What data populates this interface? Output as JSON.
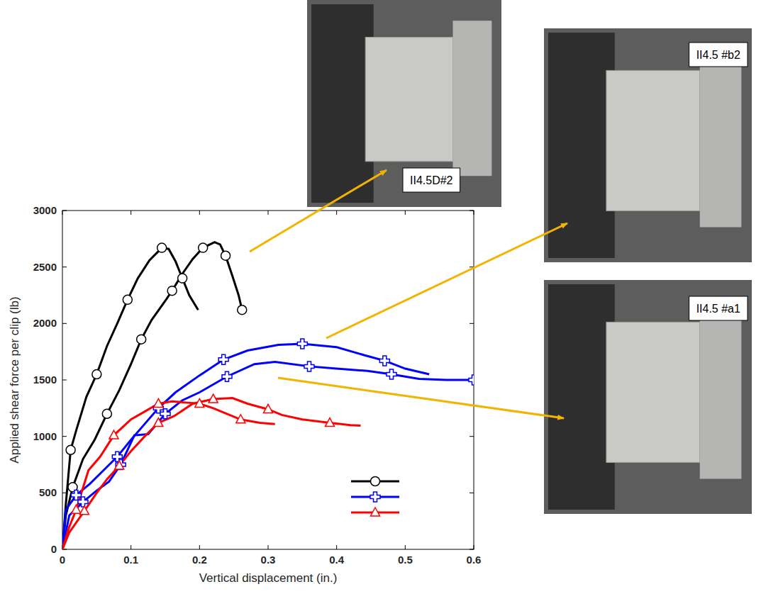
{
  "chart_data": {
    "type": "line",
    "xlabel": "Vertical displacement (in.)",
    "ylabel": "Applied shear force per clip (lb)",
    "xlim": [
      0,
      0.6
    ],
    "ylim": [
      0,
      3000
    ],
    "xticks": [
      0,
      0.1,
      0.2,
      0.3,
      0.4,
      0.5,
      0.6
    ],
    "yticks": [
      0,
      500,
      1000,
      1500,
      2000,
      2500,
      3000
    ],
    "grid": false,
    "legend": "lower right",
    "annotations": [
      {
        "text": "II4.5D#2"
      },
      {
        "text": "II4.5 #b2"
      },
      {
        "text": "II4.5 #a1"
      }
    ],
    "series": [
      {
        "color": "#000000",
        "marker": "circle",
        "line_style": "solid",
        "x": [
          0,
          0.005,
          0.012,
          0.02,
          0.035,
          0.05,
          0.065,
          0.08,
          0.095,
          0.11,
          0.127,
          0.145,
          0.155,
          0.165,
          0.175,
          0.185,
          0.198
        ],
        "values": [
          0,
          400,
          880,
          1050,
          1350,
          1550,
          1800,
          2000,
          2210,
          2400,
          2560,
          2670,
          2660,
          2550,
          2400,
          2250,
          2120
        ]
      },
      {
        "color": "#000000",
        "marker": "circle",
        "line_style": "solid",
        "x": [
          0,
          0.005,
          0.015,
          0.03,
          0.047,
          0.065,
          0.083,
          0.1,
          0.115,
          0.13,
          0.15,
          0.16,
          0.175,
          0.19,
          0.205,
          0.222,
          0.23,
          0.238,
          0.248,
          0.257,
          0.262
        ],
        "values": [
          0,
          300,
          550,
          800,
          970,
          1200,
          1410,
          1640,
          1860,
          2030,
          2200,
          2290,
          2440,
          2570,
          2670,
          2720,
          2700,
          2600,
          2420,
          2250,
          2120
        ]
      },
      {
        "color": "#0000ff",
        "marker": "plus",
        "line_style": "solid",
        "x": [
          0,
          0.005,
          0.02,
          0.04,
          0.06,
          0.08,
          0.1,
          0.12,
          0.14,
          0.165,
          0.2,
          0.235,
          0.27,
          0.315,
          0.35,
          0.4,
          0.44,
          0.47,
          0.5,
          0.535
        ],
        "values": [
          0,
          350,
          480,
          580,
          700,
          820,
          970,
          1110,
          1250,
          1390,
          1540,
          1680,
          1760,
          1810,
          1820,
          1790,
          1720,
          1670,
          1600,
          1550
        ]
      },
      {
        "color": "#0000ff",
        "marker": "plus",
        "line_style": "solid",
        "x": [
          0,
          0.01,
          0.03,
          0.05,
          0.068,
          0.085,
          0.105,
          0.125,
          0.15,
          0.175,
          0.2,
          0.24,
          0.28,
          0.31,
          0.36,
          0.4,
          0.445,
          0.48,
          0.52,
          0.56,
          0.6
        ],
        "values": [
          0,
          300,
          420,
          520,
          600,
          750,
          1010,
          1020,
          1200,
          1320,
          1390,
          1530,
          1640,
          1660,
          1620,
          1600,
          1580,
          1550,
          1510,
          1500,
          1500
        ]
      },
      {
        "color": "#ff0000",
        "marker": "triangle",
        "line_style": "solid",
        "x": [
          0,
          0.01,
          0.02,
          0.038,
          0.055,
          0.075,
          0.1,
          0.12,
          0.14,
          0.16,
          0.18,
          0.2,
          0.22,
          0.24,
          0.26,
          0.288,
          0.31
        ],
        "values": [
          0,
          200,
          350,
          700,
          820,
          1010,
          1150,
          1220,
          1290,
          1310,
          1300,
          1290,
          1250,
          1200,
          1150,
          1120,
          1110
        ]
      },
      {
        "color": "#ff0000",
        "marker": "triangle",
        "line_style": "solid",
        "x": [
          0,
          0.01,
          0.032,
          0.05,
          0.065,
          0.083,
          0.1,
          0.12,
          0.14,
          0.163,
          0.19,
          0.22,
          0.248,
          0.27,
          0.3,
          0.32,
          0.35,
          0.39,
          0.42,
          0.435
        ],
        "values": [
          0,
          150,
          340,
          500,
          620,
          740,
          870,
          1000,
          1120,
          1180,
          1290,
          1330,
          1340,
          1290,
          1240,
          1190,
          1150,
          1120,
          1100,
          1095
        ]
      }
    ]
  }
}
